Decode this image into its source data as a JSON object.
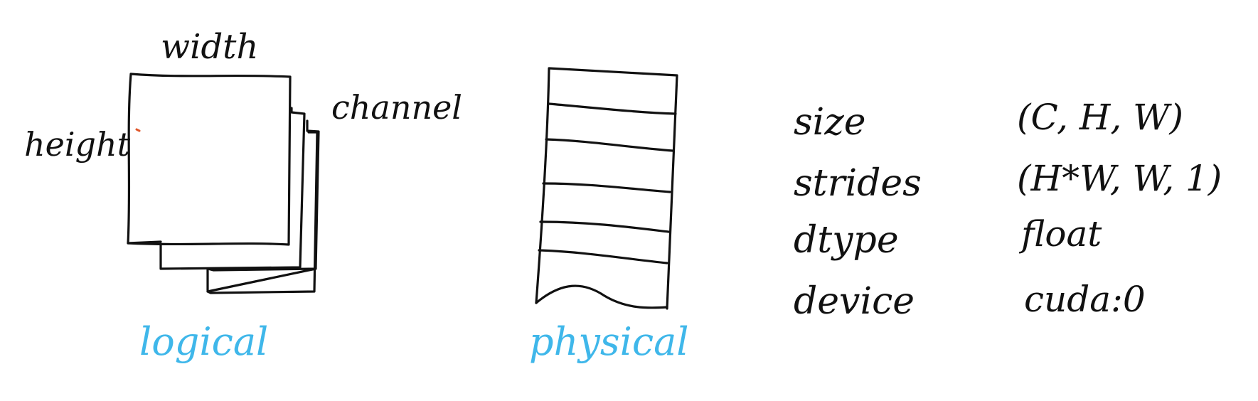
{
  "logical": {
    "caption": "logical",
    "width_label": "width",
    "height_label": "height",
    "channel_label": "channel"
  },
  "physical": {
    "caption": "physical"
  },
  "properties": [
    {
      "name": "size",
      "value": "(C, H, W)"
    },
    {
      "name": "strides",
      "value": "(H*W, W, 1)"
    },
    {
      "name": "dtype",
      "value": "float"
    },
    {
      "name": "device",
      "value": "cuda:0"
    }
  ],
  "colors": {
    "ink": "#111111",
    "caption": "#3fb7ea",
    "accent": "#e0572b"
  }
}
